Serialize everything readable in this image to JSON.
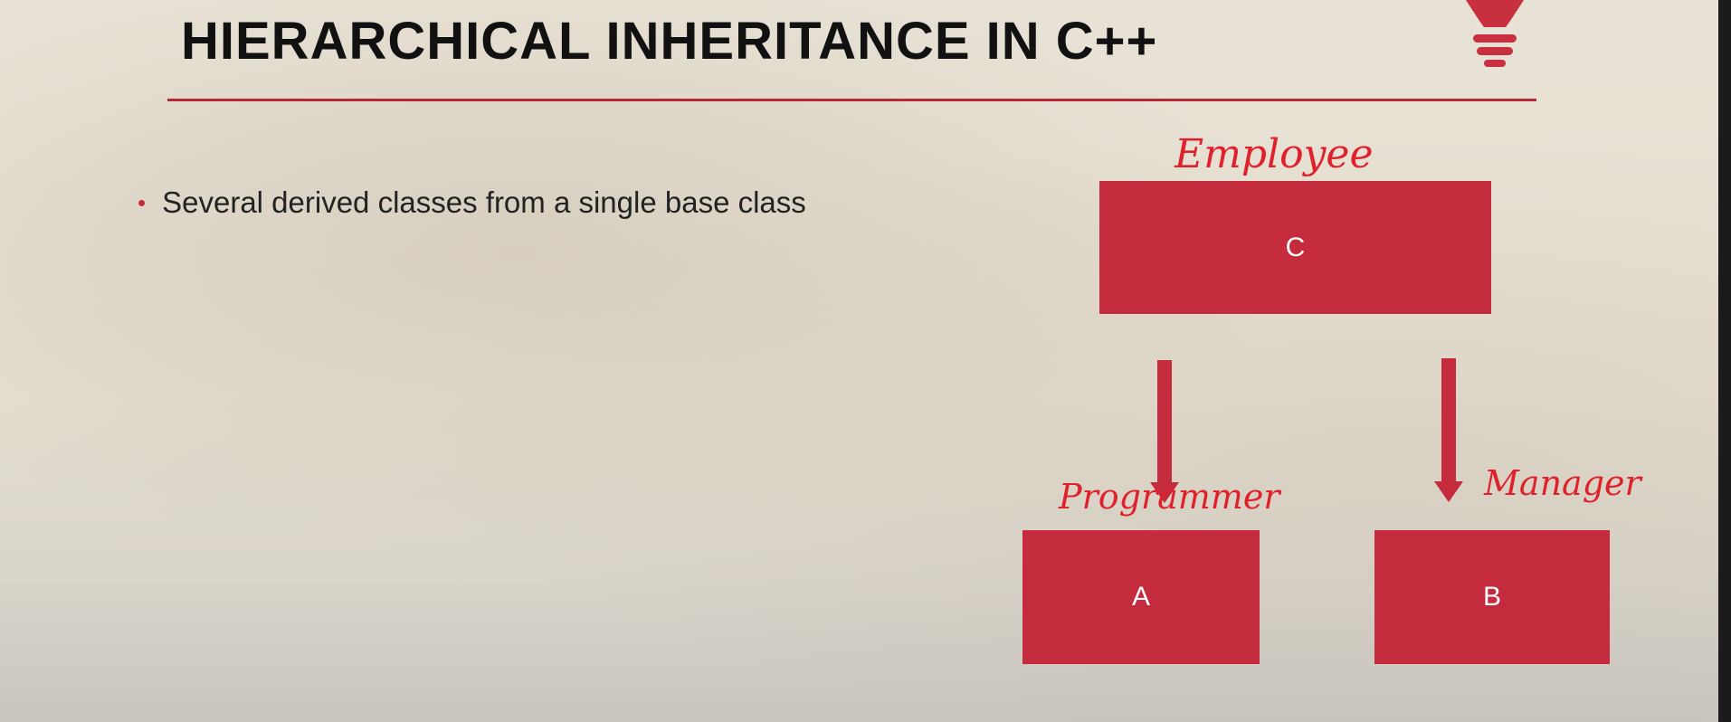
{
  "slide": {
    "title": "HIERARCHICAL INHERITANCE IN C++",
    "bullet": "Several derived classes from a single base class"
  },
  "diagram": {
    "base_class": "C",
    "derived_classes": [
      "A",
      "B"
    ],
    "annotations": {
      "base": "Employee",
      "left": "Programmer",
      "right": "Manager"
    }
  },
  "colors": {
    "accent": "#c42b3d",
    "rule": "#b3293a",
    "handwriting": "#e0202a",
    "title_text": "#111111"
  },
  "icons": [
    "lightbulb-icon",
    "arrow-down-icon"
  ]
}
